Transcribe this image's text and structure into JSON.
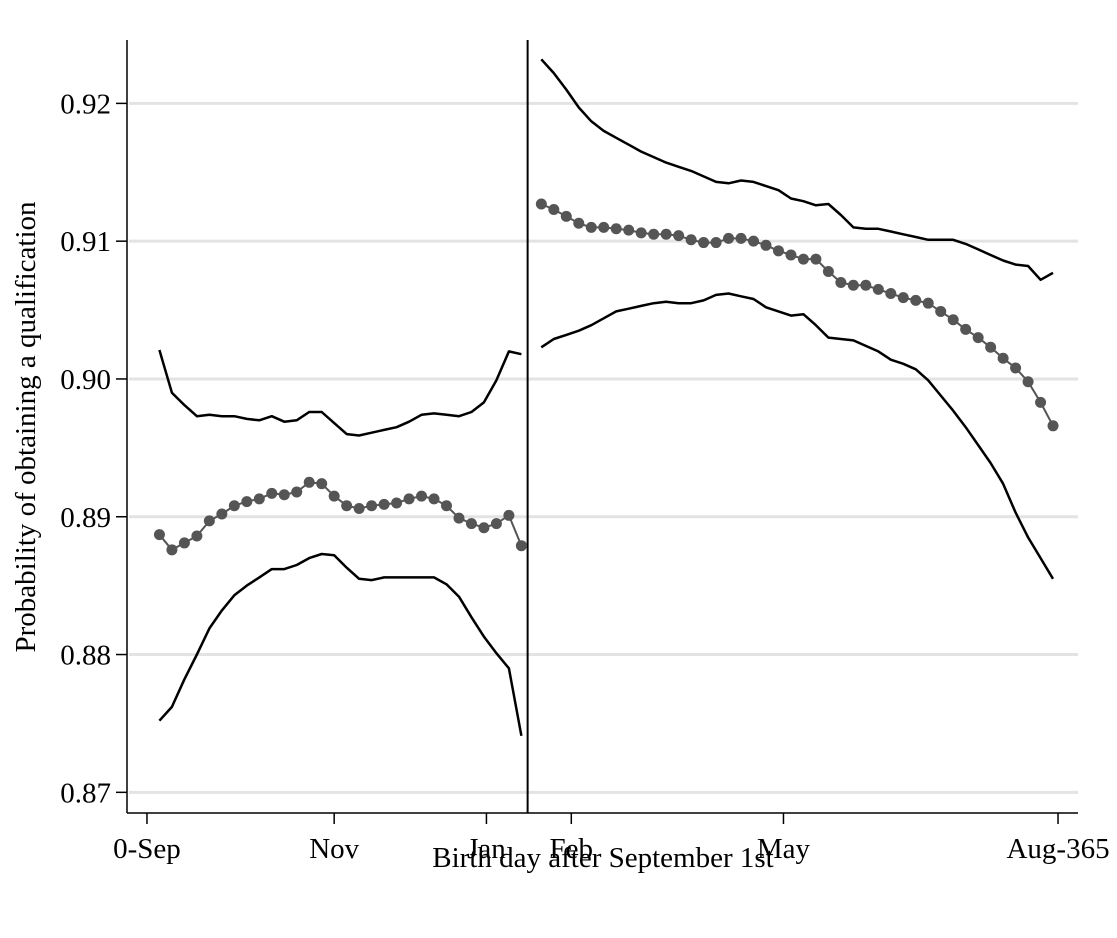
{
  "chart_data": {
    "type": "line",
    "ylabel": "Probability of obtaining a qualification",
    "xlabel": "Birth day after September 1st",
    "xlim": [
      -8,
      373
    ],
    "ylim": [
      0.8685,
      0.9246
    ],
    "xticks": [
      {
        "value": 0,
        "label": "0-Sep"
      },
      {
        "value": 75,
        "label": "Nov"
      },
      {
        "value": 136,
        "label": "Jan"
      },
      {
        "value": 170,
        "label": "Feb"
      },
      {
        "value": 255,
        "label": "May"
      },
      {
        "value": 365,
        "label": "Aug-365"
      }
    ],
    "yticks": [
      0.87,
      0.88,
      0.89,
      {
        "value": 0.9,
        "label": "0.90"
      },
      0.91,
      0.92
    ],
    "grid": true,
    "vlines": [
      152.5
    ],
    "series": [
      {
        "color": "#000000",
        "markers": false,
        "x": [
          5,
          10,
          15,
          20,
          25,
          30,
          35,
          40,
          45,
          50,
          55,
          60,
          65,
          70,
          75,
          80,
          85,
          90,
          95,
          100,
          105,
          110,
          115,
          120,
          125,
          130,
          135,
          140,
          145,
          150
        ],
        "values": [
          0.9021,
          0.899,
          0.8981,
          0.8973,
          0.8974,
          0.8973,
          0.8973,
          0.8971,
          0.897,
          0.8973,
          0.8969,
          0.897,
          0.8976,
          0.8976,
          0.8968,
          0.896,
          0.8959,
          0.8961,
          0.8963,
          0.8965,
          0.8969,
          0.8974,
          0.8975,
          0.8974,
          0.8973,
          0.8976,
          0.8983,
          0.8999,
          0.902,
          0.9018
        ]
      },
      {
        "color": "#555555",
        "markers": true,
        "x": [
          5,
          10,
          15,
          20,
          25,
          30,
          35,
          40,
          45,
          50,
          55,
          60,
          65,
          70,
          75,
          80,
          85,
          90,
          95,
          100,
          105,
          110,
          115,
          120,
          125,
          130,
          135,
          140,
          145,
          150
        ],
        "values": [
          0.8887,
          0.8876,
          0.8881,
          0.8886,
          0.8897,
          0.8902,
          0.8908,
          0.8911,
          0.8913,
          0.8917,
          0.8916,
          0.8918,
          0.8925,
          0.8924,
          0.8915,
          0.8908,
          0.8906,
          0.8908,
          0.8909,
          0.891,
          0.8913,
          0.8915,
          0.8913,
          0.8908,
          0.8899,
          0.8895,
          0.8892,
          0.8895,
          0.8901,
          0.8879
        ]
      },
      {
        "color": "#000000",
        "markers": false,
        "x": [
          5,
          10,
          15,
          20,
          25,
          30,
          35,
          40,
          45,
          50,
          55,
          60,
          65,
          70,
          75,
          80,
          85,
          90,
          95,
          100,
          105,
          110,
          115,
          120,
          125,
          130,
          135,
          140,
          145,
          150
        ],
        "values": [
          0.8752,
          0.8762,
          0.8782,
          0.88,
          0.8819,
          0.8832,
          0.8843,
          0.885,
          0.8856,
          0.8862,
          0.8862,
          0.8865,
          0.887,
          0.8873,
          0.8872,
          0.8863,
          0.8855,
          0.8854,
          0.8856,
          0.8856,
          0.8856,
          0.8856,
          0.8856,
          0.8851,
          0.8842,
          0.8827,
          0.8813,
          0.8801,
          0.879,
          0.8741
        ]
      },
      {
        "color": "#000000",
        "markers": false,
        "x": [
          158,
          163,
          168,
          173,
          178,
          183,
          188,
          193,
          198,
          203,
          208,
          213,
          218,
          223,
          228,
          233,
          238,
          243,
          248,
          253,
          258,
          263,
          268,
          273,
          278,
          283,
          288,
          293,
          298,
          303,
          308,
          313,
          318,
          323,
          328,
          333,
          338,
          343,
          348,
          353,
          358,
          363
        ],
        "values": [
          0.9232,
          0.9222,
          0.921,
          0.9197,
          0.9187,
          0.918,
          0.9175,
          0.917,
          0.9165,
          0.9161,
          0.9157,
          0.9154,
          0.9151,
          0.9147,
          0.9143,
          0.9142,
          0.9144,
          0.9143,
          0.914,
          0.9137,
          0.9131,
          0.9129,
          0.9126,
          0.9127,
          0.9119,
          0.911,
          0.9109,
          0.9109,
          0.9107,
          0.9105,
          0.9103,
          0.9101,
          0.9101,
          0.9101,
          0.9098,
          0.9094,
          0.909,
          0.9086,
          0.9083,
          0.9082,
          0.9072,
          0.9077
        ]
      },
      {
        "color": "#555555",
        "markers": true,
        "x": [
          158,
          163,
          168,
          173,
          178,
          183,
          188,
          193,
          198,
          203,
          208,
          213,
          218,
          223,
          228,
          233,
          238,
          243,
          248,
          253,
          258,
          263,
          268,
          273,
          278,
          283,
          288,
          293,
          298,
          303,
          308,
          313,
          318,
          323,
          328,
          333,
          338,
          343,
          348,
          353,
          358,
          363
        ],
        "values": [
          0.9127,
          0.9123,
          0.9118,
          0.9113,
          0.911,
          0.911,
          0.9109,
          0.9108,
          0.9106,
          0.9105,
          0.9105,
          0.9104,
          0.9101,
          0.9099,
          0.9099,
          0.9102,
          0.9102,
          0.91,
          0.9097,
          0.9093,
          0.909,
          0.9087,
          0.9087,
          0.9078,
          0.907,
          0.9068,
          0.9068,
          0.9065,
          0.9062,
          0.9059,
          0.9057,
          0.9055,
          0.9049,
          0.9043,
          0.9036,
          0.903,
          0.9023,
          0.9015,
          0.9008,
          0.8998,
          0.8983,
          0.8966
        ]
      },
      {
        "color": "#000000",
        "markers": false,
        "x": [
          158,
          163,
          168,
          173,
          178,
          183,
          188,
          193,
          198,
          203,
          208,
          213,
          218,
          223,
          228,
          233,
          238,
          243,
          248,
          253,
          258,
          263,
          268,
          273,
          278,
          283,
          288,
          293,
          298,
          303,
          308,
          313,
          318,
          323,
          328,
          333,
          338,
          343,
          348,
          353,
          358,
          363
        ],
        "values": [
          0.9023,
          0.9029,
          0.9032,
          0.9035,
          0.9039,
          0.9044,
          0.9049,
          0.9051,
          0.9053,
          0.9055,
          0.9056,
          0.9055,
          0.9055,
          0.9057,
          0.9061,
          0.9062,
          0.906,
          0.9058,
          0.9052,
          0.9049,
          0.9046,
          0.9047,
          0.9039,
          0.903,
          0.9029,
          0.9028,
          0.9024,
          0.902,
          0.9014,
          0.9011,
          0.9007,
          0.8999,
          0.8988,
          0.8977,
          0.8965,
          0.8952,
          0.8939,
          0.8924,
          0.8903,
          0.8885,
          0.887,
          0.8855
        ]
      }
    ]
  }
}
